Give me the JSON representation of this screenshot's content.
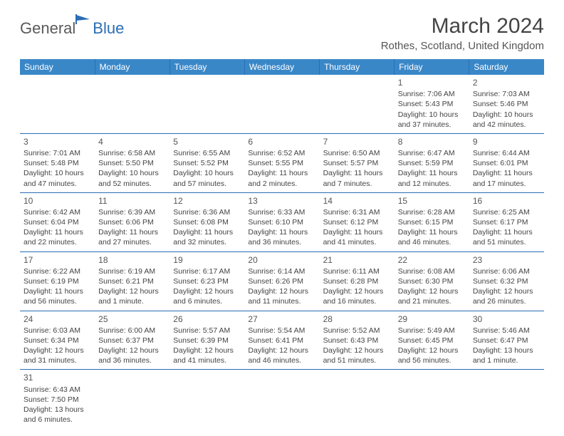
{
  "logo": {
    "part1": "General",
    "part2": "Blue"
  },
  "title": "March 2024",
  "location": "Rothes, Scotland, United Kingdom",
  "colors": {
    "header_bg": "#3a87c8",
    "header_border": "#2a6db5",
    "row_border": "#2a6db5",
    "text": "#444444",
    "logo_gray": "#5a5a5a",
    "logo_blue": "#2a6db5",
    "background": "#ffffff"
  },
  "weekdays": [
    "Sunday",
    "Monday",
    "Tuesday",
    "Wednesday",
    "Thursday",
    "Friday",
    "Saturday"
  ],
  "weeks": [
    [
      null,
      null,
      null,
      null,
      null,
      {
        "n": "1",
        "sunrise": "7:06 AM",
        "sunset": "5:43 PM",
        "daylight": "10 hours and 37 minutes."
      },
      {
        "n": "2",
        "sunrise": "7:03 AM",
        "sunset": "5:46 PM",
        "daylight": "10 hours and 42 minutes."
      }
    ],
    [
      {
        "n": "3",
        "sunrise": "7:01 AM",
        "sunset": "5:48 PM",
        "daylight": "10 hours and 47 minutes."
      },
      {
        "n": "4",
        "sunrise": "6:58 AM",
        "sunset": "5:50 PM",
        "daylight": "10 hours and 52 minutes."
      },
      {
        "n": "5",
        "sunrise": "6:55 AM",
        "sunset": "5:52 PM",
        "daylight": "10 hours and 57 minutes."
      },
      {
        "n": "6",
        "sunrise": "6:52 AM",
        "sunset": "5:55 PM",
        "daylight": "11 hours and 2 minutes."
      },
      {
        "n": "7",
        "sunrise": "6:50 AM",
        "sunset": "5:57 PM",
        "daylight": "11 hours and 7 minutes."
      },
      {
        "n": "8",
        "sunrise": "6:47 AM",
        "sunset": "5:59 PM",
        "daylight": "11 hours and 12 minutes."
      },
      {
        "n": "9",
        "sunrise": "6:44 AM",
        "sunset": "6:01 PM",
        "daylight": "11 hours and 17 minutes."
      }
    ],
    [
      {
        "n": "10",
        "sunrise": "6:42 AM",
        "sunset": "6:04 PM",
        "daylight": "11 hours and 22 minutes."
      },
      {
        "n": "11",
        "sunrise": "6:39 AM",
        "sunset": "6:06 PM",
        "daylight": "11 hours and 27 minutes."
      },
      {
        "n": "12",
        "sunrise": "6:36 AM",
        "sunset": "6:08 PM",
        "daylight": "11 hours and 32 minutes."
      },
      {
        "n": "13",
        "sunrise": "6:33 AM",
        "sunset": "6:10 PM",
        "daylight": "11 hours and 36 minutes."
      },
      {
        "n": "14",
        "sunrise": "6:31 AM",
        "sunset": "6:12 PM",
        "daylight": "11 hours and 41 minutes."
      },
      {
        "n": "15",
        "sunrise": "6:28 AM",
        "sunset": "6:15 PM",
        "daylight": "11 hours and 46 minutes."
      },
      {
        "n": "16",
        "sunrise": "6:25 AM",
        "sunset": "6:17 PM",
        "daylight": "11 hours and 51 minutes."
      }
    ],
    [
      {
        "n": "17",
        "sunrise": "6:22 AM",
        "sunset": "6:19 PM",
        "daylight": "11 hours and 56 minutes."
      },
      {
        "n": "18",
        "sunrise": "6:19 AM",
        "sunset": "6:21 PM",
        "daylight": "12 hours and 1 minute."
      },
      {
        "n": "19",
        "sunrise": "6:17 AM",
        "sunset": "6:23 PM",
        "daylight": "12 hours and 6 minutes."
      },
      {
        "n": "20",
        "sunrise": "6:14 AM",
        "sunset": "6:26 PM",
        "daylight": "12 hours and 11 minutes."
      },
      {
        "n": "21",
        "sunrise": "6:11 AM",
        "sunset": "6:28 PM",
        "daylight": "12 hours and 16 minutes."
      },
      {
        "n": "22",
        "sunrise": "6:08 AM",
        "sunset": "6:30 PM",
        "daylight": "12 hours and 21 minutes."
      },
      {
        "n": "23",
        "sunrise": "6:06 AM",
        "sunset": "6:32 PM",
        "daylight": "12 hours and 26 minutes."
      }
    ],
    [
      {
        "n": "24",
        "sunrise": "6:03 AM",
        "sunset": "6:34 PM",
        "daylight": "12 hours and 31 minutes."
      },
      {
        "n": "25",
        "sunrise": "6:00 AM",
        "sunset": "6:37 PM",
        "daylight": "12 hours and 36 minutes."
      },
      {
        "n": "26",
        "sunrise": "5:57 AM",
        "sunset": "6:39 PM",
        "daylight": "12 hours and 41 minutes."
      },
      {
        "n": "27",
        "sunrise": "5:54 AM",
        "sunset": "6:41 PM",
        "daylight": "12 hours and 46 minutes."
      },
      {
        "n": "28",
        "sunrise": "5:52 AM",
        "sunset": "6:43 PM",
        "daylight": "12 hours and 51 minutes."
      },
      {
        "n": "29",
        "sunrise": "5:49 AM",
        "sunset": "6:45 PM",
        "daylight": "12 hours and 56 minutes."
      },
      {
        "n": "30",
        "sunrise": "5:46 AM",
        "sunset": "6:47 PM",
        "daylight": "13 hours and 1 minute."
      }
    ],
    [
      {
        "n": "31",
        "sunrise": "6:43 AM",
        "sunset": "7:50 PM",
        "daylight": "13 hours and 6 minutes."
      },
      null,
      null,
      null,
      null,
      null,
      null
    ]
  ],
  "labels": {
    "sunrise": "Sunrise: ",
    "sunset": "Sunset: ",
    "daylight": "Daylight: "
  }
}
